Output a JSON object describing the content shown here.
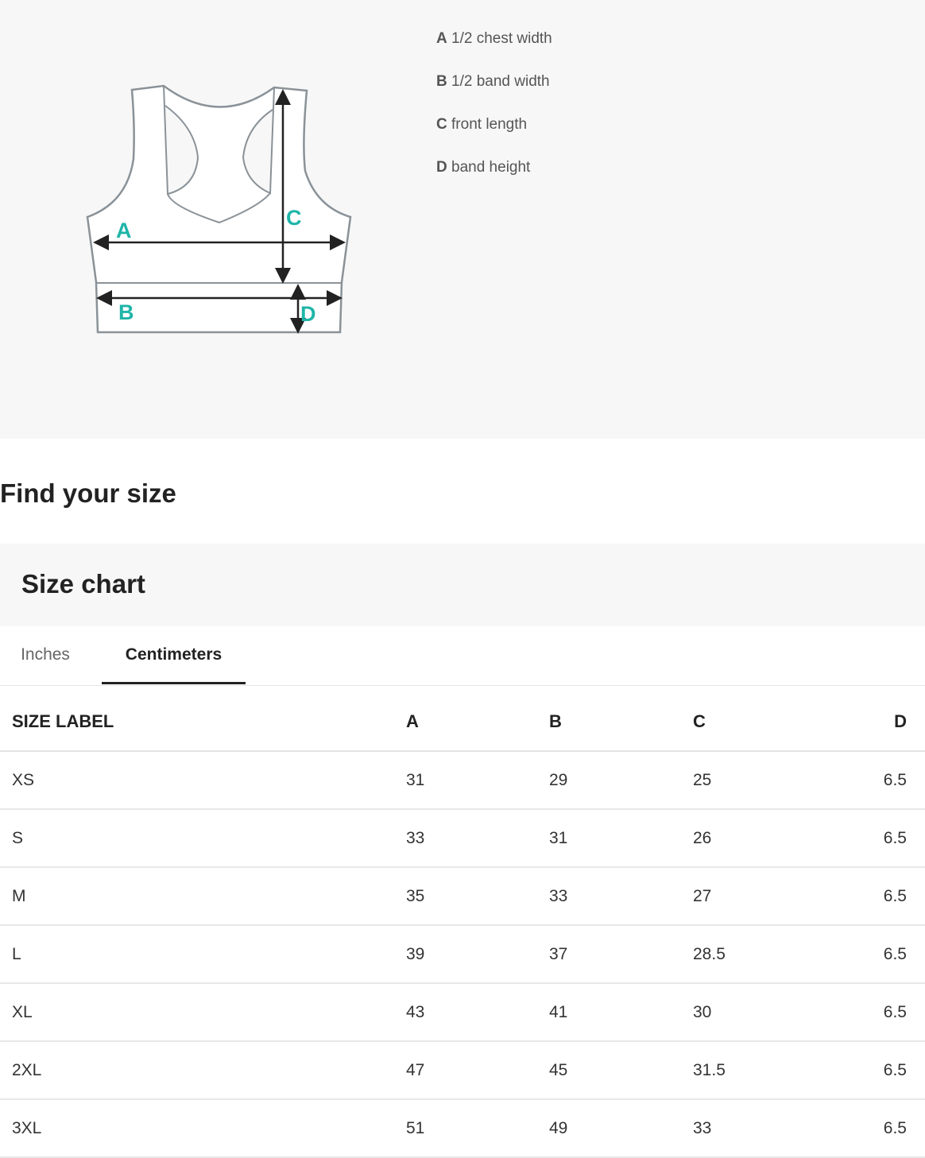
{
  "diagram": {
    "labels": [
      "A",
      "B",
      "C",
      "D"
    ],
    "label_color": "#1fb5a8",
    "legend": [
      {
        "key": "A",
        "text": "1/2 chest width"
      },
      {
        "key": "B",
        "text": "1/2 band width"
      },
      {
        "key": "C",
        "text": "front length"
      },
      {
        "key": "D",
        "text": "band height"
      }
    ]
  },
  "heading": "Find your size",
  "size_chart": {
    "title": "Size chart",
    "tabs": [
      {
        "label": "Inches",
        "active": false
      },
      {
        "label": "Centimeters",
        "active": true
      }
    ],
    "columns": [
      "SIZE LABEL",
      "A",
      "B",
      "C",
      "D"
    ],
    "rows": [
      [
        "XS",
        "31",
        "29",
        "25",
        "6.5"
      ],
      [
        "S",
        "33",
        "31",
        "26",
        "6.5"
      ],
      [
        "M",
        "35",
        "33",
        "27",
        "6.5"
      ],
      [
        "L",
        "39",
        "37",
        "28.5",
        "6.5"
      ],
      [
        "XL",
        "43",
        "41",
        "30",
        "6.5"
      ],
      [
        "2XL",
        "47",
        "45",
        "31.5",
        "6.5"
      ],
      [
        "3XL",
        "51",
        "49",
        "33",
        "6.5"
      ]
    ]
  }
}
